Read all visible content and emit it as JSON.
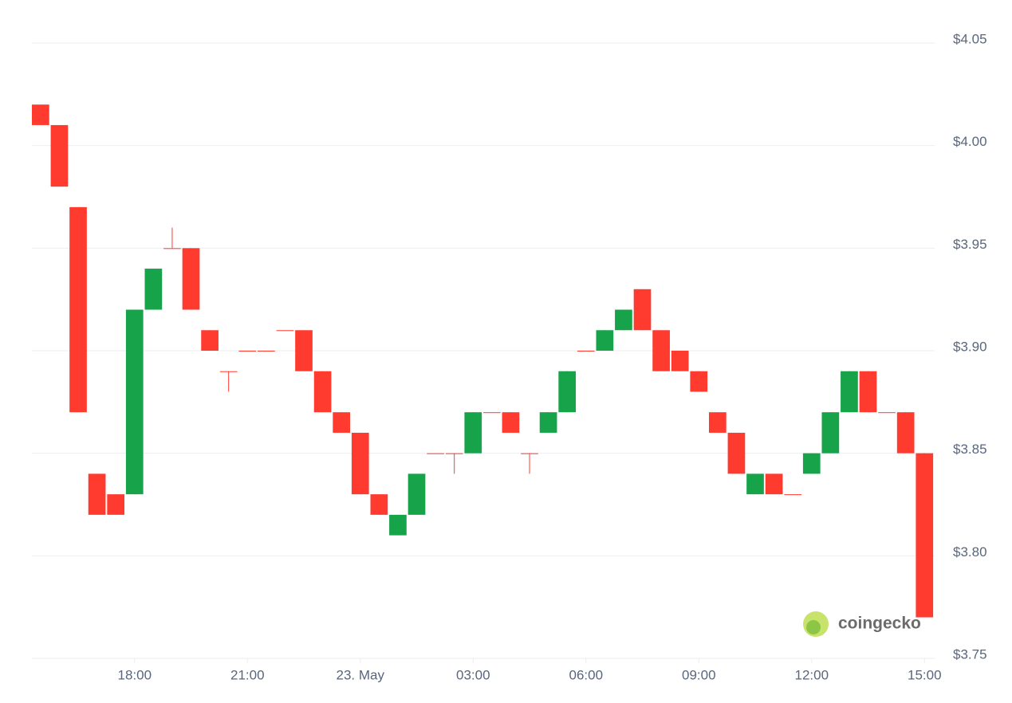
{
  "chart_data": {
    "type": "candlestick",
    "x": [
      15.5,
      16,
      16.5,
      17,
      17.5,
      18,
      18.5,
      19,
      19.5,
      20,
      20.5,
      21,
      21.5,
      22,
      22.5,
      23,
      23.5,
      24,
      24.5,
      25,
      25.5,
      26,
      26.5,
      27,
      27.5,
      28,
      28.5,
      29,
      29.5,
      30,
      30.5,
      31,
      31.5,
      32,
      32.5,
      33,
      33.5,
      34,
      34.5,
      35,
      35.5,
      36,
      36.5,
      37,
      37.5,
      38,
      38.5,
      39
    ],
    "open": [
      4.02,
      4.01,
      3.97,
      3.84,
      3.83,
      3.83,
      3.92,
      3.95,
      3.95,
      3.91,
      3.89,
      3.9,
      3.9,
      3.91,
      3.91,
      3.89,
      3.87,
      3.86,
      3.83,
      3.81,
      3.82,
      3.85,
      3.85,
      3.85,
      3.87,
      3.87,
      3.85,
      3.86,
      3.87,
      3.9,
      3.9,
      3.91,
      3.93,
      3.91,
      3.9,
      3.89,
      3.87,
      3.86,
      3.83,
      3.84,
      3.83,
      3.84,
      3.85,
      3.87,
      3.89,
      3.87,
      3.87,
      3.85
    ],
    "high": [
      4.02,
      4.01,
      3.97,
      3.84,
      3.83,
      3.92,
      3.94,
      3.96,
      3.95,
      3.91,
      3.89,
      3.9,
      3.9,
      3.91,
      3.91,
      3.89,
      3.87,
      3.86,
      3.83,
      3.82,
      3.84,
      3.85,
      3.85,
      3.87,
      3.87,
      3.87,
      3.85,
      3.87,
      3.89,
      3.9,
      3.91,
      3.92,
      3.93,
      3.91,
      3.9,
      3.89,
      3.87,
      3.86,
      3.84,
      3.84,
      3.83,
      3.85,
      3.87,
      3.89,
      3.89,
      3.87,
      3.87,
      3.85
    ],
    "low": [
      4.01,
      3.98,
      3.87,
      3.82,
      3.82,
      3.83,
      3.92,
      3.95,
      3.92,
      3.9,
      3.88,
      3.9,
      3.9,
      3.91,
      3.89,
      3.87,
      3.86,
      3.83,
      3.82,
      3.81,
      3.82,
      3.85,
      3.84,
      3.85,
      3.87,
      3.86,
      3.84,
      3.86,
      3.87,
      3.9,
      3.9,
      3.91,
      3.91,
      3.89,
      3.89,
      3.88,
      3.86,
      3.84,
      3.83,
      3.83,
      3.83,
      3.84,
      3.85,
      3.87,
      3.87,
      3.87,
      3.85,
      3.77
    ],
    "close": [
      4.01,
      3.98,
      3.87,
      3.82,
      3.82,
      3.92,
      3.94,
      3.95,
      3.92,
      3.9,
      3.89,
      3.9,
      3.9,
      3.91,
      3.89,
      3.87,
      3.86,
      3.83,
      3.82,
      3.82,
      3.84,
      3.85,
      3.85,
      3.87,
      3.87,
      3.86,
      3.85,
      3.87,
      3.89,
      3.9,
      3.91,
      3.92,
      3.91,
      3.89,
      3.89,
      3.88,
      3.86,
      3.84,
      3.84,
      3.83,
      3.83,
      3.85,
      3.87,
      3.89,
      3.87,
      3.87,
      3.85,
      3.77
    ],
    "up_color": "#16a34a",
    "down_color": "#ff3b30",
    "xlim": [
      15.27,
      39.27
    ],
    "xticks": [
      {
        "value": 18,
        "label": "18:00"
      },
      {
        "value": 21,
        "label": "21:00"
      },
      {
        "value": 24,
        "label": "23. May"
      },
      {
        "value": 27,
        "label": "03:00"
      },
      {
        "value": 30,
        "label": "06:00"
      },
      {
        "value": 33,
        "label": "09:00"
      },
      {
        "value": 36,
        "label": "12:00"
      },
      {
        "value": 39,
        "label": "15:00"
      }
    ],
    "ylim": [
      3.75,
      4.05
    ],
    "yticks": [
      {
        "value": 3.75,
        "label": "$3.75"
      },
      {
        "value": 3.8,
        "label": "$3.80"
      },
      {
        "value": 3.85,
        "label": "$3.85"
      },
      {
        "value": 3.9,
        "label": "$3.90"
      },
      {
        "value": 3.95,
        "label": "$3.95"
      },
      {
        "value": 4.0,
        "label": "$4.00"
      },
      {
        "value": 4.05,
        "label": "$4.05"
      }
    ],
    "grid": true
  },
  "watermark": "coingecko"
}
